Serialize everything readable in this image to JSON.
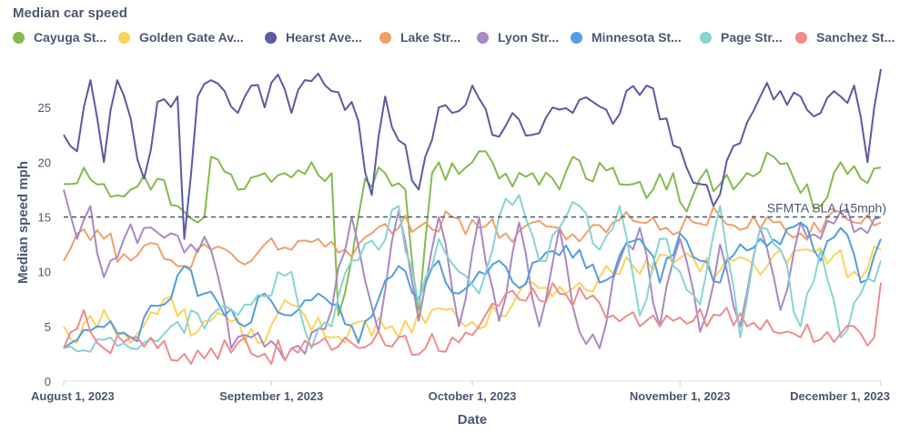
{
  "chart_data": {
    "type": "line",
    "title": "Median car speed",
    "xlabel": "Date",
    "ylabel": "Median speed mph",
    "ylim": [
      0,
      29
    ],
    "yticks": [
      0,
      5,
      10,
      15,
      20,
      25
    ],
    "xrange": [
      "2023-08-01",
      "2023-12-01"
    ],
    "xticks": [
      {
        "label": "August 1, 2023",
        "day": 0
      },
      {
        "label": "September 1, 2023",
        "day": 31
      },
      {
        "label": "October 1, 2023",
        "day": 61
      },
      {
        "label": "November 1, 2023",
        "day": 92
      },
      {
        "label": "December 1, 2023",
        "day": 122
      }
    ],
    "reference_line": {
      "value": 15,
      "label": "SFMTA SLA (15mph)"
    },
    "series": [
      {
        "name": "Cayuga St...",
        "color": "#84bb4c",
        "anchors": [
          [
            0,
            18
          ],
          [
            3,
            19.5
          ],
          [
            6,
            18
          ],
          [
            10,
            17.5
          ],
          [
            14,
            18.5
          ],
          [
            17,
            16
          ],
          [
            21,
            15
          ],
          [
            22,
            20.5
          ],
          [
            26,
            17.5
          ],
          [
            30,
            19
          ],
          [
            33,
            19
          ],
          [
            37,
            20
          ],
          [
            40,
            19
          ],
          [
            41,
            6
          ],
          [
            45,
            18.5
          ],
          [
            48,
            19
          ],
          [
            51,
            17.5
          ],
          [
            53,
            6
          ],
          [
            55,
            19
          ],
          [
            60,
            19.5
          ],
          [
            62,
            21
          ],
          [
            65,
            18.5
          ],
          [
            70,
            19
          ],
          [
            74,
            17.5
          ],
          [
            76,
            20.5
          ],
          [
            78,
            18.5
          ],
          [
            82,
            19.5
          ],
          [
            85,
            18
          ],
          [
            88,
            17.5
          ],
          [
            91,
            19
          ],
          [
            93,
            15.5
          ],
          [
            95,
            18.5
          ],
          [
            98,
            18
          ],
          [
            102,
            19
          ],
          [
            106,
            20.5
          ],
          [
            109,
            18.5
          ],
          [
            113,
            16
          ],
          [
            116,
            20
          ],
          [
            119,
            18.5
          ],
          [
            122,
            19.5
          ]
        ]
      },
      {
        "name": "Golden Gate Av...",
        "color": "#f9d45c",
        "anchors": [
          [
            0,
            5
          ],
          [
            2,
            3.5
          ],
          [
            6,
            6.5
          ],
          [
            10,
            3.5
          ],
          [
            15,
            7.5
          ],
          [
            20,
            4.5
          ],
          [
            24,
            6
          ],
          [
            29,
            3.5
          ],
          [
            34,
            7
          ],
          [
            40,
            4
          ],
          [
            45,
            5.5
          ],
          [
            50,
            4
          ],
          [
            55,
            6.5
          ],
          [
            60,
            5
          ],
          [
            65,
            6
          ],
          [
            70,
            9
          ],
          [
            75,
            8
          ],
          [
            80,
            9.5
          ],
          [
            85,
            10.5
          ],
          [
            90,
            11.5
          ],
          [
            95,
            10
          ],
          [
            100,
            11
          ],
          [
            105,
            10.5
          ],
          [
            110,
            12
          ],
          [
            115,
            11.5
          ],
          [
            118,
            10
          ],
          [
            122,
            12
          ]
        ]
      },
      {
        "name": "Hearst Ave...",
        "color": "#5b5aa3",
        "anchors": [
          [
            0,
            22.5
          ],
          [
            2,
            21
          ],
          [
            4,
            27.5
          ],
          [
            6,
            20
          ],
          [
            8,
            27.5
          ],
          [
            10,
            24
          ],
          [
            12,
            18.5
          ],
          [
            14,
            25.5
          ],
          [
            17,
            26
          ],
          [
            18,
            13
          ],
          [
            20,
            26
          ],
          [
            22,
            27.5
          ],
          [
            24,
            26.5
          ],
          [
            26,
            24.5
          ],
          [
            28,
            27
          ],
          [
            30,
            25
          ],
          [
            32,
            28
          ],
          [
            34,
            24.5
          ],
          [
            36,
            27.5
          ],
          [
            40,
            26.5
          ],
          [
            43,
            25.5
          ],
          [
            46,
            17
          ],
          [
            48,
            26
          ],
          [
            50,
            22
          ],
          [
            53,
            17.5
          ],
          [
            56,
            25
          ],
          [
            58,
            24.5
          ],
          [
            61,
            27
          ],
          [
            64,
            22.5
          ],
          [
            67,
            24.5
          ],
          [
            70,
            22.5
          ],
          [
            73,
            25
          ],
          [
            76,
            24.5
          ],
          [
            79,
            25.5
          ],
          [
            82,
            23.5
          ],
          [
            84,
            26.5
          ],
          [
            87,
            27
          ],
          [
            90,
            24
          ],
          [
            93,
            19.5
          ],
          [
            95,
            18
          ],
          [
            97,
            16
          ],
          [
            100,
            21.5
          ],
          [
            104,
            26
          ],
          [
            107,
            26.5
          ],
          [
            110,
            26
          ],
          [
            113,
            24.5
          ],
          [
            116,
            26
          ],
          [
            118,
            27
          ],
          [
            120,
            20
          ],
          [
            122,
            28.5
          ]
        ]
      },
      {
        "name": "Lake Str...",
        "color": "#f0a06a",
        "anchors": [
          [
            0,
            11
          ],
          [
            2,
            13.5
          ],
          [
            6,
            13
          ],
          [
            10,
            11
          ],
          [
            14,
            12.5
          ],
          [
            18,
            10.5
          ],
          [
            22,
            12
          ],
          [
            26,
            11
          ],
          [
            30,
            12.5
          ],
          [
            34,
            12
          ],
          [
            38,
            13
          ],
          [
            42,
            12
          ],
          [
            46,
            13.5
          ],
          [
            50,
            14
          ],
          [
            54,
            14.5
          ],
          [
            58,
            15
          ],
          [
            62,
            14
          ],
          [
            66,
            13.5
          ],
          [
            70,
            14.5
          ],
          [
            74,
            14
          ],
          [
            78,
            13.5
          ],
          [
            82,
            14.5
          ],
          [
            86,
            14.5
          ],
          [
            90,
            14
          ],
          [
            94,
            14.5
          ],
          [
            98,
            15
          ],
          [
            102,
            14
          ],
          [
            106,
            14.5
          ],
          [
            110,
            13.5
          ],
          [
            114,
            15
          ],
          [
            118,
            14.5
          ],
          [
            122,
            14.5
          ]
        ]
      },
      {
        "name": "Lyon Str...",
        "color": "#a989c5",
        "anchors": [
          [
            0,
            17.5
          ],
          [
            2,
            13
          ],
          [
            4,
            16
          ],
          [
            6,
            9.5
          ],
          [
            9,
            13
          ],
          [
            12,
            14
          ],
          [
            16,
            13.5
          ],
          [
            19,
            12.5
          ],
          [
            22,
            12
          ],
          [
            25,
            3
          ],
          [
            28,
            4
          ],
          [
            32,
            3
          ],
          [
            36,
            2.5
          ],
          [
            40,
            6.5
          ],
          [
            43,
            15
          ],
          [
            47,
            4.5
          ],
          [
            50,
            15.5
          ],
          [
            53,
            5.5
          ],
          [
            56,
            15
          ],
          [
            59,
            5
          ],
          [
            62,
            15
          ],
          [
            65,
            5.5
          ],
          [
            68,
            14.5
          ],
          [
            71,
            5
          ],
          [
            74,
            14
          ],
          [
            77,
            4.5
          ],
          [
            80,
            3
          ],
          [
            83,
            11
          ],
          [
            86,
            14
          ],
          [
            89,
            5
          ],
          [
            92,
            13
          ],
          [
            95,
            4.5
          ],
          [
            98,
            12.5
          ],
          [
            101,
            5
          ],
          [
            104,
            14
          ],
          [
            107,
            6.5
          ],
          [
            110,
            14.5
          ],
          [
            113,
            13
          ],
          [
            116,
            15.5
          ],
          [
            119,
            14
          ],
          [
            122,
            15
          ]
        ]
      },
      {
        "name": "Minnesota St...",
        "color": "#509ee3",
        "anchors": [
          [
            0,
            3
          ],
          [
            5,
            5
          ],
          [
            10,
            4
          ],
          [
            15,
            7
          ],
          [
            18,
            10.5
          ],
          [
            21,
            8
          ],
          [
            24,
            6
          ],
          [
            27,
            5
          ],
          [
            30,
            8
          ],
          [
            34,
            6
          ],
          [
            38,
            8
          ],
          [
            41,
            7
          ],
          [
            44,
            3.5
          ],
          [
            47,
            7.5
          ],
          [
            50,
            10.5
          ],
          [
            53,
            7.5
          ],
          [
            56,
            11
          ],
          [
            59,
            8
          ],
          [
            62,
            10
          ],
          [
            65,
            11
          ],
          [
            68,
            8.5
          ],
          [
            71,
            11
          ],
          [
            74,
            11.5
          ],
          [
            77,
            12
          ],
          [
            80,
            9
          ],
          [
            83,
            11.5
          ],
          [
            86,
            13
          ],
          [
            89,
            9
          ],
          [
            92,
            13.5
          ],
          [
            95,
            11
          ],
          [
            98,
            9
          ],
          [
            101,
            12.5
          ],
          [
            104,
            13
          ],
          [
            107,
            12.5
          ],
          [
            110,
            14.5
          ],
          [
            113,
            11
          ],
          [
            116,
            14
          ],
          [
            119,
            9
          ],
          [
            122,
            13
          ]
        ]
      },
      {
        "name": "Page Str...",
        "color": "#88d4d3",
        "anchors": [
          [
            0,
            3
          ],
          [
            10,
            3
          ],
          [
            16,
            5
          ],
          [
            22,
            6
          ],
          [
            28,
            7
          ],
          [
            34,
            10
          ],
          [
            37,
            3
          ],
          [
            40,
            5
          ],
          [
            43,
            11
          ],
          [
            47,
            12
          ],
          [
            50,
            16
          ],
          [
            53,
            7
          ],
          [
            56,
            13
          ],
          [
            59,
            10
          ],
          [
            62,
            8
          ],
          [
            65,
            15
          ],
          [
            68,
            17
          ],
          [
            71,
            11
          ],
          [
            74,
            14
          ],
          [
            77,
            16
          ],
          [
            80,
            12
          ],
          [
            83,
            16
          ],
          [
            86,
            6
          ],
          [
            89,
            13
          ],
          [
            92,
            10
          ],
          [
            95,
            7
          ],
          [
            98,
            16
          ],
          [
            101,
            4
          ],
          [
            104,
            14
          ],
          [
            107,
            12
          ],
          [
            110,
            5
          ],
          [
            113,
            12
          ],
          [
            116,
            4
          ],
          [
            119,
            8
          ],
          [
            122,
            11
          ]
        ]
      },
      {
        "name": "Sanchez St...",
        "color": "#ef8c8c",
        "anchors": [
          [
            0,
            3
          ],
          [
            3,
            6.5
          ],
          [
            6,
            3
          ],
          [
            10,
            4
          ],
          [
            14,
            3
          ],
          [
            18,
            2.5
          ],
          [
            22,
            3
          ],
          [
            26,
            3.5
          ],
          [
            30,
            2.5
          ],
          [
            34,
            3
          ],
          [
            38,
            3.5
          ],
          [
            42,
            4
          ],
          [
            46,
            3.5
          ],
          [
            50,
            4
          ],
          [
            54,
            3
          ],
          [
            58,
            4
          ],
          [
            62,
            5
          ],
          [
            66,
            8
          ],
          [
            70,
            8.5
          ],
          [
            74,
            8
          ],
          [
            78,
            7.5
          ],
          [
            82,
            6
          ],
          [
            86,
            5
          ],
          [
            90,
            6
          ],
          [
            94,
            5.5
          ],
          [
            98,
            6
          ],
          [
            102,
            5
          ],
          [
            106,
            4.5
          ],
          [
            110,
            4
          ],
          [
            114,
            4.5
          ],
          [
            118,
            5
          ],
          [
            121,
            4
          ],
          [
            122,
            9
          ]
        ]
      }
    ]
  }
}
